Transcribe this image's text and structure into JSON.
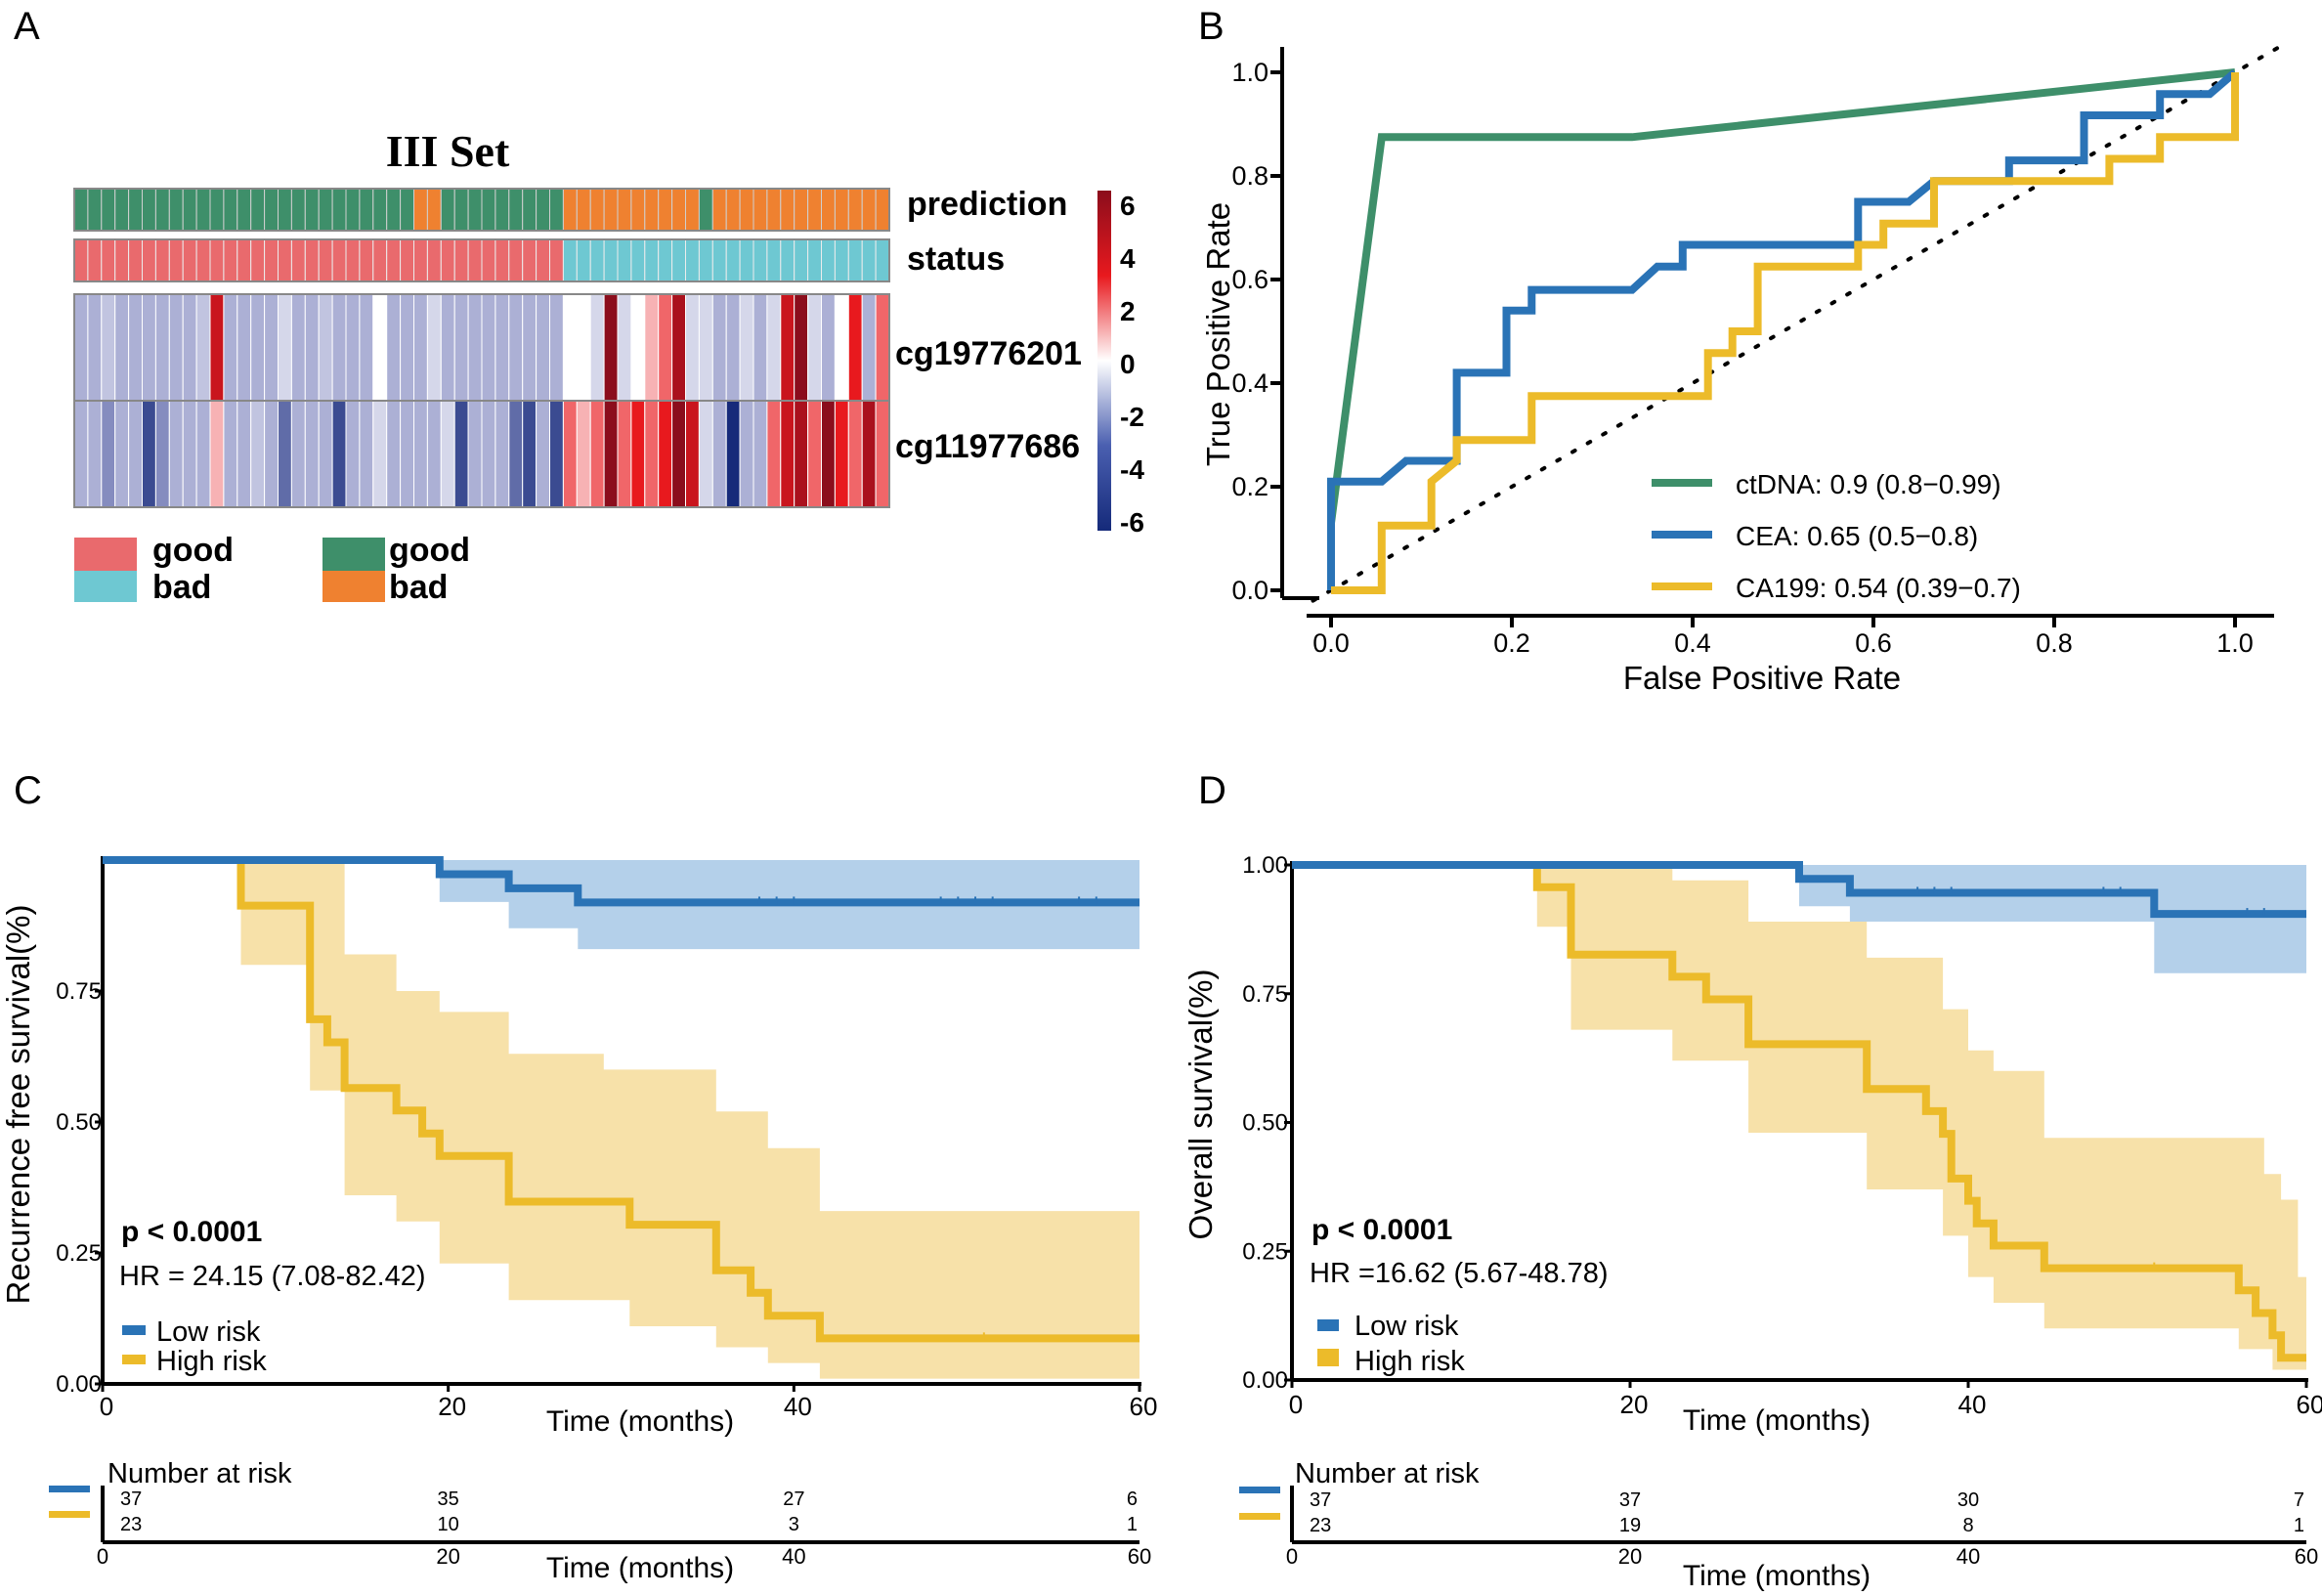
{
  "colors": {
    "green": "#3e8f6a",
    "orange": "#ef8130",
    "pink": "#e96a6d",
    "cyan": "#6ec8d2",
    "blue": "#2a73b6",
    "lightblue": "#a7c8e6",
    "yellow": "#ecbb2a",
    "lightyellow": "#f6dc9a",
    "grey": "#9a9a9a",
    "red": "#d7191c",
    "navy": "#223e8e"
  },
  "chart_data": [
    {
      "panel": "A",
      "type": "heatmap",
      "title": "III Set",
      "n_samples": 60,
      "row_labels": [
        "prediction",
        "status",
        "cg19776201",
        "cg11977686"
      ],
      "prediction": [
        "good",
        "good",
        "good",
        "good",
        "good",
        "good",
        "good",
        "good",
        "good",
        "good",
        "good",
        "good",
        "good",
        "good",
        "good",
        "good",
        "good",
        "good",
        "good",
        "good",
        "good",
        "good",
        "good",
        "good",
        "good",
        "bad",
        "bad",
        "good",
        "good",
        "good",
        "good",
        "good",
        "good",
        "good",
        "good",
        "good",
        "bad",
        "bad",
        "bad",
        "bad",
        "bad",
        "bad",
        "bad",
        "bad",
        "bad",
        "bad",
        "good",
        "bad",
        "bad",
        "bad",
        "bad",
        "bad",
        "bad",
        "bad",
        "bad",
        "bad",
        "bad",
        "bad",
        "bad",
        "bad"
      ],
      "status": [
        "good",
        "good",
        "good",
        "good",
        "good",
        "good",
        "good",
        "good",
        "good",
        "good",
        "good",
        "good",
        "good",
        "good",
        "good",
        "good",
        "good",
        "good",
        "good",
        "good",
        "good",
        "good",
        "good",
        "good",
        "good",
        "good",
        "good",
        "good",
        "good",
        "good",
        "good",
        "good",
        "good",
        "good",
        "good",
        "good",
        "bad",
        "bad",
        "bad",
        "bad",
        "bad",
        "bad",
        "bad",
        "bad",
        "bad",
        "bad",
        "bad",
        "bad",
        "bad",
        "bad",
        "bad",
        "bad",
        "bad",
        "bad",
        "bad",
        "bad",
        "bad",
        "bad",
        "bad",
        "bad"
      ],
      "cg19776201": [
        -2,
        -2,
        -1.5,
        -2,
        -2,
        -2,
        -2,
        -2,
        -2,
        -1.5,
        4,
        -2,
        -2,
        -2,
        -2,
        -1,
        -2,
        -2,
        -1.5,
        -2,
        -2,
        -2,
        0,
        -2,
        -2,
        -2,
        -1,
        -2,
        -2,
        -2,
        -2,
        -2,
        -2,
        -2,
        -2,
        -2,
        0,
        0,
        -1,
        6,
        -1,
        0,
        1,
        2,
        5,
        -1,
        -1,
        -2,
        -2,
        -1,
        -2,
        -1,
        4,
        6,
        -1,
        -2,
        0,
        3,
        -2,
        2
      ],
      "cg11977686": [
        -2,
        -2,
        -3,
        -2,
        -2,
        -5,
        -3,
        -2,
        -2,
        -2,
        1,
        -2,
        -2,
        -1.5,
        -2,
        -4,
        -2,
        -2,
        -2,
        -5,
        -2,
        -2,
        -1,
        -2,
        -2,
        -2,
        -2,
        -1,
        -5,
        -2,
        -2,
        -2,
        -4,
        -5,
        -2,
        -5,
        2,
        1,
        2,
        6,
        2,
        3,
        2,
        3,
        6,
        4,
        -1,
        -2,
        -6,
        -2,
        -2,
        2,
        4,
        5,
        2,
        6,
        3,
        2,
        5,
        2
      ],
      "scale_ticks": [
        "6",
        "4",
        "2",
        "0",
        "-2",
        "-4",
        "-6"
      ],
      "legend_status": [
        "good",
        "bad"
      ],
      "legend_prediction": [
        "good",
        "bad"
      ]
    },
    {
      "panel": "B",
      "type": "line",
      "xlabel": "False Positive Rate",
      "ylabel": "True Positive Rate",
      "xlim": [
        0,
        1
      ],
      "ylim": [
        0,
        1
      ],
      "x_ticks": [
        "0.0",
        "0.2",
        "0.4",
        "0.6",
        "0.8",
        "1.0"
      ],
      "y_ticks": [
        "0.0",
        "0.2",
        "0.4",
        "0.6",
        "0.8",
        "1.0"
      ],
      "series": [
        {
          "name": "ctDNA",
          "legend": "ctDNA: 0.9 (0.8−0.99)",
          "color": "#3e8f6a",
          "points": [
            [
              0,
              0
            ],
            [
              0,
              0.13
            ],
            [
              0.056,
              0.875
            ],
            [
              0.333,
              0.875
            ],
            [
              1,
              1
            ]
          ]
        },
        {
          "name": "CEA",
          "legend": "CEA: 0.65 (0.5−0.8)",
          "color": "#2a73b6",
          "points": [
            [
              0,
              0
            ],
            [
              0,
              0.21
            ],
            [
              0.056,
              0.21
            ],
            [
              0.083,
              0.25
            ],
            [
              0.139,
              0.25
            ],
            [
              0.139,
              0.42
            ],
            [
              0.194,
              0.42
            ],
            [
              0.194,
              0.54
            ],
            [
              0.222,
              0.54
            ],
            [
              0.222,
              0.58
            ],
            [
              0.333,
              0.58
            ],
            [
              0.361,
              0.625
            ],
            [
              0.389,
              0.625
            ],
            [
              0.389,
              0.667
            ],
            [
              0.583,
              0.667
            ],
            [
              0.583,
              0.75
            ],
            [
              0.639,
              0.75
            ],
            [
              0.667,
              0.79
            ],
            [
              0.75,
              0.79
            ],
            [
              0.75,
              0.83
            ],
            [
              0.833,
              0.83
            ],
            [
              0.833,
              0.917
            ],
            [
              0.917,
              0.917
            ],
            [
              0.917,
              0.958
            ],
            [
              0.972,
              0.958
            ],
            [
              1,
              1
            ]
          ]
        },
        {
          "name": "CA199",
          "legend": "CA199: 0.54 (0.39−0.7)",
          "color": "#ecbb2a",
          "points": [
            [
              0,
              0
            ],
            [
              0.056,
              0
            ],
            [
              0.056,
              0.125
            ],
            [
              0.111,
              0.125
            ],
            [
              0.111,
              0.21
            ],
            [
              0.139,
              0.25
            ],
            [
              0.139,
              0.29
            ],
            [
              0.222,
              0.29
            ],
            [
              0.222,
              0.375
            ],
            [
              0.417,
              0.375
            ],
            [
              0.417,
              0.458
            ],
            [
              0.444,
              0.458
            ],
            [
              0.444,
              0.5
            ],
            [
              0.472,
              0.5
            ],
            [
              0.472,
              0.625
            ],
            [
              0.583,
              0.625
            ],
            [
              0.583,
              0.667
            ],
            [
              0.611,
              0.667
            ],
            [
              0.611,
              0.708
            ],
            [
              0.667,
              0.708
            ],
            [
              0.667,
              0.79
            ],
            [
              0.861,
              0.79
            ],
            [
              0.861,
              0.833
            ],
            [
              0.917,
              0.833
            ],
            [
              0.917,
              0.875
            ],
            [
              1,
              0.875
            ],
            [
              1,
              1
            ]
          ]
        }
      ],
      "reference": "diagonal dotted line"
    },
    {
      "panel": "C",
      "type": "line",
      "subtype": "kaplan-meier",
      "xlabel": "Time (months)",
      "ylabel": "Recurrence free survival(%)",
      "xlim": [
        0,
        60
      ],
      "ylim": [
        0,
        1
      ],
      "x_ticks": [
        "0",
        "20",
        "40",
        "60"
      ],
      "y_ticks": [
        "0.00",
        "0.25",
        "0.50",
        "0.75"
      ],
      "pvalue": "p < 0.0001",
      "hr": "HR = 24.15 (7.08-82.42)",
      "legend": [
        "Low risk",
        "High risk"
      ],
      "series": [
        {
          "name": "Low risk",
          "color": "#2a73b6",
          "steps": [
            [
              0,
              1
            ],
            [
              19.5,
              0.973
            ],
            [
              23.5,
              0.946
            ],
            [
              27.5,
              0.919
            ],
            [
              60,
              0.919
            ]
          ],
          "ci_lower": [
            [
              0,
              1
            ],
            [
              19.5,
              0.92
            ],
            [
              23.5,
              0.87
            ],
            [
              27.5,
              0.83
            ],
            [
              60,
              0.83
            ]
          ],
          "ci_upper": [
            [
              0,
              1
            ],
            [
              60,
              1
            ]
          ],
          "censor_x": [
            38,
            39,
            40,
            48.5,
            49.5,
            50.5,
            51.5,
            56.5,
            57.5
          ]
        },
        {
          "name": "High risk",
          "color": "#ecbb2a",
          "steps": [
            [
              0,
              1
            ],
            [
              8,
              0.913
            ],
            [
              12,
              0.696
            ],
            [
              13,
              0.652
            ],
            [
              14,
              0.565
            ],
            [
              17,
              0.522
            ],
            [
              18.5,
              0.478
            ],
            [
              19.5,
              0.435
            ],
            [
              23.5,
              0.348
            ],
            [
              30.5,
              0.304
            ],
            [
              35.5,
              0.217
            ],
            [
              37.5,
              0.174
            ],
            [
              38.5,
              0.13
            ],
            [
              41.5,
              0.087
            ],
            [
              60,
              0.087
            ]
          ],
          "ci_lower": [
            [
              0,
              1
            ],
            [
              8,
              0.8
            ],
            [
              12,
              0.56
            ],
            [
              14,
              0.36
            ],
            [
              17,
              0.31
            ],
            [
              19.5,
              0.23
            ],
            [
              23.5,
              0.16
            ],
            [
              30.5,
              0.11
            ],
            [
              35.5,
              0.07
            ],
            [
              38.5,
              0.04
            ],
            [
              41.5,
              0.01
            ],
            [
              60,
              0.01
            ]
          ],
          "ci_upper": [
            [
              0,
              1
            ],
            [
              12,
              1
            ],
            [
              14,
              0.82
            ],
            [
              17,
              0.75
            ],
            [
              19.5,
              0.71
            ],
            [
              23.5,
              0.63
            ],
            [
              29,
              0.6
            ],
            [
              35.5,
              0.52
            ],
            [
              38.5,
              0.45
            ],
            [
              41.5,
              0.33
            ],
            [
              60,
              0.33
            ]
          ],
          "censor_x": [
            51
          ]
        }
      ],
      "risk_table": {
        "title": "Number at risk",
        "times": [
          0,
          20,
          40,
          60
        ],
        "low": [
          "37",
          "35",
          "27",
          "6"
        ],
        "high": [
          "23",
          "10",
          "3",
          "1"
        ],
        "xlabel": "Time (months)",
        "x_ticks": [
          "0",
          "20",
          "40",
          "60"
        ]
      }
    },
    {
      "panel": "D",
      "type": "line",
      "subtype": "kaplan-meier",
      "xlabel": "Time (months)",
      "ylabel": "Overall  survival(%)",
      "xlim": [
        0,
        60
      ],
      "ylim": [
        0,
        1
      ],
      "x_ticks": [
        "0",
        "20",
        "40",
        "60"
      ],
      "y_ticks": [
        "0.00",
        "0.25",
        "0.50",
        "0.75",
        "1.00"
      ],
      "pvalue": "p < 0.0001",
      "hr": "HR =16.62 (5.67-48.78)",
      "legend": [
        "Low risk",
        "High risk"
      ],
      "series": [
        {
          "name": "Low risk",
          "color": "#2a73b6",
          "steps": [
            [
              0,
              1
            ],
            [
              30,
              0.973
            ],
            [
              33,
              0.946
            ],
            [
              51,
              0.905
            ],
            [
              60,
              0.905
            ]
          ],
          "ci_lower": [
            [
              0,
              1
            ],
            [
              30,
              0.92
            ],
            [
              33,
              0.89
            ],
            [
              51,
              0.79
            ],
            [
              60,
              0.79
            ]
          ],
          "ci_upper": [
            [
              0,
              1
            ],
            [
              60,
              1
            ]
          ],
          "censor_x": [
            37,
            38,
            39,
            48,
            49,
            56.5,
            57.5
          ]
        },
        {
          "name": "High risk",
          "color": "#ecbb2a",
          "steps": [
            [
              0,
              1
            ],
            [
              14.5,
              0.957
            ],
            [
              16.5,
              0.826
            ],
            [
              22.5,
              0.783
            ],
            [
              24.5,
              0.739
            ],
            [
              27,
              0.652
            ],
            [
              34,
              0.565
            ],
            [
              37.5,
              0.522
            ],
            [
              38.5,
              0.478
            ],
            [
              39,
              0.391
            ],
            [
              40,
              0.348
            ],
            [
              40.5,
              0.304
            ],
            [
              41.5,
              0.261
            ],
            [
              44.5,
              0.217
            ],
            [
              56,
              0.174
            ],
            [
              57,
              0.13
            ],
            [
              58,
              0.087
            ],
            [
              58.5,
              0.043
            ],
            [
              60,
              0.043
            ]
          ],
          "ci_lower": [
            [
              0,
              1
            ],
            [
              14.5,
              0.88
            ],
            [
              16.5,
              0.68
            ],
            [
              22.5,
              0.62
            ],
            [
              27,
              0.48
            ],
            [
              34,
              0.37
            ],
            [
              38.5,
              0.28
            ],
            [
              40,
              0.2
            ],
            [
              41.5,
              0.15
            ],
            [
              44.5,
              0.1
            ],
            [
              56,
              0.06
            ],
            [
              58,
              0.02
            ],
            [
              60,
              0.01
            ]
          ],
          "ci_upper": [
            [
              0,
              1
            ],
            [
              16.5,
              1
            ],
            [
              22.5,
              0.97
            ],
            [
              27,
              0.89
            ],
            [
              34,
              0.82
            ],
            [
              38.5,
              0.72
            ],
            [
              40,
              0.64
            ],
            [
              41.5,
              0.6
            ],
            [
              44.5,
              0.47
            ],
            [
              56,
              0.47
            ],
            [
              57.5,
              0.4
            ],
            [
              58.5,
              0.35
            ],
            [
              59.5,
              0.2
            ],
            [
              60,
              0.2
            ]
          ],
          "censor_x": [
            51
          ]
        }
      ],
      "risk_table": {
        "title": "Number at risk",
        "times": [
          0,
          20,
          40,
          60
        ],
        "low": [
          "37",
          "37",
          "30",
          "7"
        ],
        "high": [
          "23",
          "19",
          "8",
          "1"
        ],
        "xlabel": "Time (months)",
        "x_ticks": [
          "0",
          "20",
          "40",
          "60"
        ]
      }
    }
  ],
  "panel_labels": [
    "A",
    "B",
    "C",
    "D"
  ]
}
